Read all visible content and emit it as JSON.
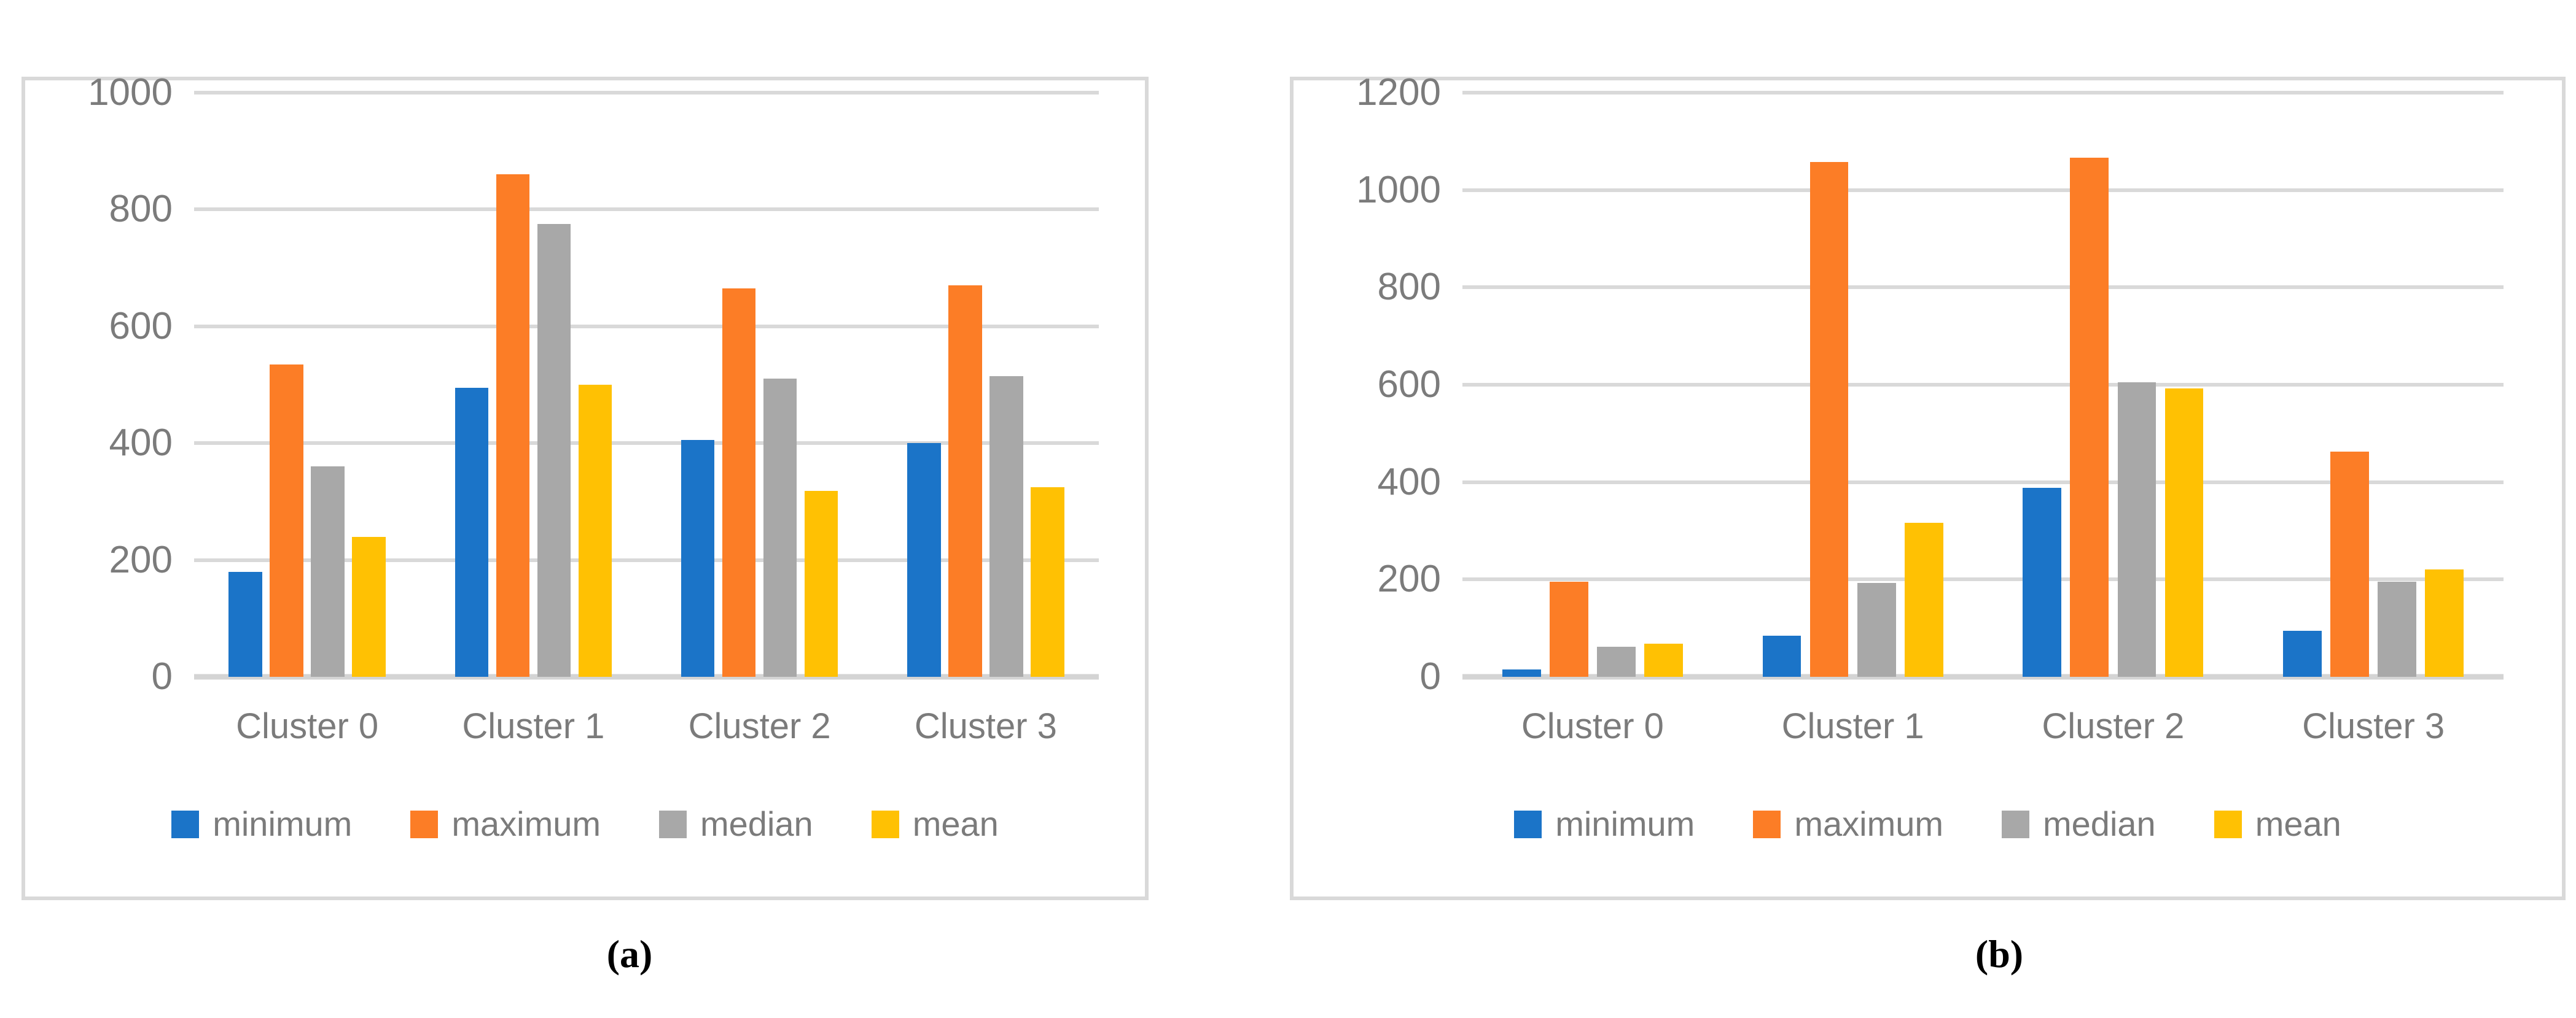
{
  "figure": {
    "captions": {
      "a": "(a)",
      "b": "(b)"
    }
  },
  "palette": {
    "minimum": "#1B74C8",
    "maximum": "#FC7D26",
    "median": "#A8A8A8",
    "mean": "#FFC103",
    "axis_text": "#7B7B7B",
    "gridline": "#D9D9D9",
    "panel_border": "#D9D9D9"
  },
  "chart_data": [
    {
      "type": "bar",
      "panel": "a",
      "title": "",
      "xlabel": "",
      "ylabel": "",
      "categories": [
        "Cluster 0",
        "Cluster 1",
        "Cluster 2",
        "Cluster 3"
      ],
      "series": [
        {
          "name": "minimum",
          "color": "#1B74C8",
          "values": [
            180,
            495,
            405,
            400
          ]
        },
        {
          "name": "maximum",
          "color": "#FC7D26",
          "values": [
            535,
            860,
            665,
            670
          ]
        },
        {
          "name": "median",
          "color": "#A8A8A8",
          "values": [
            360,
            775,
            510,
            515
          ]
        },
        {
          "name": "mean",
          "color": "#FFC103",
          "values": [
            240,
            500,
            318,
            325
          ]
        }
      ],
      "ylim": [
        0,
        1000
      ],
      "yticks": [
        0,
        200,
        400,
        600,
        800,
        1000
      ],
      "grid": true,
      "legend_position": "bottom",
      "legend": [
        "minimum",
        "maximum",
        "median",
        "mean"
      ]
    },
    {
      "type": "bar",
      "panel": "b",
      "title": "",
      "xlabel": "",
      "ylabel": "",
      "categories": [
        "Cluster 0",
        "Cluster 1",
        "Cluster 2",
        "Cluster 3"
      ],
      "series": [
        {
          "name": "minimum",
          "color": "#1B74C8",
          "values": [
            15,
            85,
            388,
            95
          ]
        },
        {
          "name": "maximum",
          "color": "#FC7D26",
          "values": [
            195,
            1057,
            1067,
            462
          ]
        },
        {
          "name": "median",
          "color": "#A8A8A8",
          "values": [
            62,
            193,
            605,
            195
          ]
        },
        {
          "name": "mean",
          "color": "#FFC103",
          "values": [
            68,
            317,
            593,
            220
          ]
        }
      ],
      "ylim": [
        0,
        1200
      ],
      "yticks": [
        0,
        200,
        400,
        600,
        800,
        1000,
        1200
      ],
      "grid": true,
      "legend_position": "bottom",
      "legend": [
        "minimum",
        "maximum",
        "median",
        "mean"
      ]
    }
  ]
}
